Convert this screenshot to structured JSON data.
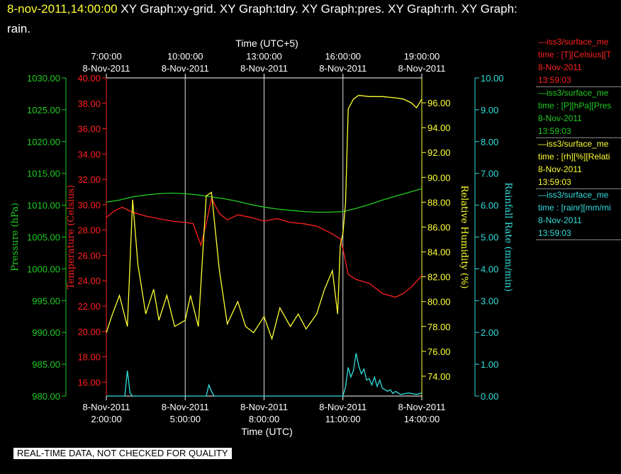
{
  "header": {
    "timestamp": "8-nov-2011,14:00:00",
    "title_line1": "XY Graph:xy-grid.  XY Graph:tdry.  XY Graph:pres.  XY Graph:rh.  XY Graph:",
    "title_line2": "rain."
  },
  "notice": "REAL-TIME DATA, NOT CHECKED FOR QUALITY",
  "colors": {
    "temperature": "#ff2020",
    "pressure": "#22cc22",
    "humidity": "#ffff33",
    "rain": "#33dddd",
    "grid": "#ffffff"
  },
  "legend": [
    {
      "title": "—iss3/surface_me",
      "desc": "time : [T][Celsius][T",
      "date": "8-Nov-2011",
      "time": "13:59:03",
      "color": "#ff2020"
    },
    {
      "title": "—iss3/surface_me",
      "desc": "time : [P][hPa][Pres",
      "date": "8-Nov-2011",
      "time": "13:59:03",
      "color": "#22cc22"
    },
    {
      "title": "—iss3/surface_me",
      "desc": "time : [rh][%][Relati",
      "date": "8-Nov-2011",
      "time": "13:59:03",
      "color": "#ffff33"
    },
    {
      "title": "—iss3/surface_me",
      "desc": "time : [rainr][mm/mi",
      "date": "8-Nov-2011",
      "time": "13:59:03",
      "color": "#33dddd"
    }
  ],
  "chart_data": {
    "type": "line",
    "x_bottom": {
      "label": "Time (UTC)",
      "range": [
        2,
        14
      ],
      "ticks": [
        {
          "v": 2,
          "date": "8-Nov-2011",
          "time": "2:00:00"
        },
        {
          "v": 5,
          "date": "8-Nov-2011",
          "time": "5:00:00"
        },
        {
          "v": 8,
          "date": "8-Nov-2011",
          "time": "8:00:00"
        },
        {
          "v": 11,
          "date": "8-Nov-2011",
          "time": "11:00:00"
        },
        {
          "v": 14,
          "date": "8-Nov-2011",
          "time": "14:00:00"
        }
      ]
    },
    "x_top": {
      "label": "Time (UTC+5)",
      "ticks": [
        {
          "v": 2,
          "time": "7:00:00",
          "date": "8-Nov-2011"
        },
        {
          "v": 5,
          "time": "10:00:00",
          "date": "8-Nov-2011"
        },
        {
          "v": 8,
          "time": "13:00:00",
          "date": "8-Nov-2011"
        },
        {
          "v": 11,
          "time": "16:00:00",
          "date": "8-Nov-2011"
        },
        {
          "v": 14,
          "time": "19:00:00",
          "date": "8-Nov-2011"
        }
      ]
    },
    "grid": true,
    "axes": [
      {
        "id": "pressure",
        "label": "Pressure (hPa)",
        "range": [
          980,
          1030
        ],
        "ticks": [
          "980.00",
          "985.00",
          "990.00",
          "995.00",
          "1000.00",
          "1005.00",
          "1010.00",
          "1015.00",
          "1020.00",
          "1025.00",
          "1030.00"
        ],
        "color": "#22cc22"
      },
      {
        "id": "temperature",
        "label": "Temperature (Celsius)",
        "range": [
          14.9,
          40
        ],
        "ticks": [
          "16.00",
          "18.00",
          "20.00",
          "22.00",
          "24.00",
          "26.00",
          "28.00",
          "30.00",
          "32.00",
          "34.00",
          "36.00",
          "38.00",
          "40.00"
        ],
        "color": "#ff2020"
      },
      {
        "id": "humidity",
        "label": "Relative Humidity (%)",
        "range": [
          72.4,
          98
        ],
        "ticks": [
          "74.00",
          "76.00",
          "78.00",
          "80.00",
          "82.00",
          "84.00",
          "86.00",
          "88.00",
          "90.00",
          "92.00",
          "94.00",
          "96.00"
        ],
        "color": "#ffff33"
      },
      {
        "id": "rain",
        "label": "Rainfall Rate (mm/min)",
        "range": [
          0,
          10
        ],
        "ticks": [
          "0.00",
          "1.00",
          "2.00",
          "3.00",
          "4.00",
          "5.00",
          "6.00",
          "7.00",
          "8.00",
          "9.00",
          "10.00"
        ],
        "color": "#33dddd"
      }
    ],
    "series": [
      {
        "axis": "pressure",
        "x": [
          2,
          2.5,
          3,
          3.5,
          4,
          4.5,
          5,
          5.5,
          6,
          6.5,
          7,
          7.5,
          8,
          8.5,
          9,
          9.5,
          10,
          10.5,
          11,
          11.5,
          12,
          12.5,
          13,
          13.5,
          14
        ],
        "values": [
          1010.5,
          1010.8,
          1011.3,
          1011.6,
          1011.8,
          1011.9,
          1011.8,
          1011.6,
          1011.3,
          1011.0,
          1010.6,
          1010.1,
          1009.7,
          1009.4,
          1009.2,
          1009.0,
          1008.9,
          1008.9,
          1009.0,
          1009.5,
          1010.1,
          1010.8,
          1011.4,
          1012.0,
          1012.6
        ]
      },
      {
        "axis": "temperature",
        "x": [
          2,
          2.3,
          2.6,
          3,
          3.5,
          4,
          4.5,
          5,
          5.3,
          5.6,
          5.8,
          6,
          6.3,
          6.6,
          7,
          7.5,
          8,
          8.5,
          9,
          9.5,
          10,
          10.5,
          10.9,
          11,
          11.2,
          11.5,
          12,
          12.5,
          13,
          13.3,
          13.6,
          14
        ],
        "values": [
          29.0,
          29.5,
          29.8,
          29.4,
          29.1,
          28.9,
          28.7,
          28.6,
          28.5,
          26.8,
          28.5,
          30.5,
          29.3,
          28.8,
          29.2,
          29.0,
          28.7,
          28.9,
          28.6,
          28.5,
          28.3,
          27.8,
          27.3,
          26.5,
          24.5,
          24.1,
          23.8,
          23.0,
          22.7,
          23.0,
          23.5,
          24.4
        ]
      },
      {
        "axis": "humidity",
        "x": [
          2,
          2.2,
          2.5,
          2.8,
          3,
          3.2,
          3.5,
          3.8,
          4,
          4.3,
          4.6,
          5,
          5.2,
          5.5,
          5.8,
          6,
          6.3,
          6.6,
          7,
          7.3,
          7.6,
          8,
          8.3,
          8.6,
          9,
          9.3,
          9.6,
          10,
          10.3,
          10.6,
          10.8,
          10.9,
          11,
          11.1,
          11.2,
          11.4,
          11.6,
          12,
          12.5,
          13,
          13.3,
          13.6,
          13.8,
          14
        ],
        "values": [
          77.5,
          78.8,
          80.5,
          78,
          88.2,
          83,
          79,
          81,
          78.5,
          80.5,
          78,
          78.5,
          80.5,
          78,
          88.5,
          88.8,
          82.5,
          78.2,
          80,
          78,
          77.5,
          78.8,
          77,
          79.5,
          78,
          79,
          77.8,
          79,
          81,
          82.5,
          79,
          84.5,
          85.5,
          88,
          95.5,
          96.3,
          96.6,
          96.5,
          96.5,
          96.4,
          96.3,
          96.0,
          95.6,
          96.3
        ]
      },
      {
        "axis": "rain",
        "x": [
          2,
          2.4,
          2.7,
          2.8,
          2.9,
          3,
          3.5,
          4,
          4.5,
          5,
          5.5,
          5.8,
          5.9,
          6,
          6.1,
          6.5,
          7,
          7.5,
          8,
          8.5,
          9,
          9.5,
          10,
          10.5,
          11,
          11.1,
          11.2,
          11.3,
          11.4,
          11.5,
          11.6,
          11.7,
          11.8,
          11.9,
          12,
          12.1,
          12.2,
          12.3,
          12.4,
          12.5,
          12.7,
          12.8,
          12.9,
          13,
          13.2,
          13.5,
          13.8,
          14
        ],
        "values": [
          0,
          0,
          0,
          0.8,
          0.1,
          0,
          0,
          0,
          0,
          0,
          0,
          0,
          0.35,
          0.15,
          0,
          0,
          0,
          0,
          0,
          0,
          0,
          0,
          0,
          0,
          0,
          0.3,
          0.9,
          0.6,
          0.8,
          1.35,
          0.95,
          0.7,
          0.85,
          0.5,
          0.55,
          0.35,
          0.6,
          0.3,
          0.5,
          0.25,
          0.15,
          0.2,
          0.08,
          0.15,
          0.05,
          0.1,
          0.05,
          0.1
        ]
      }
    ]
  }
}
